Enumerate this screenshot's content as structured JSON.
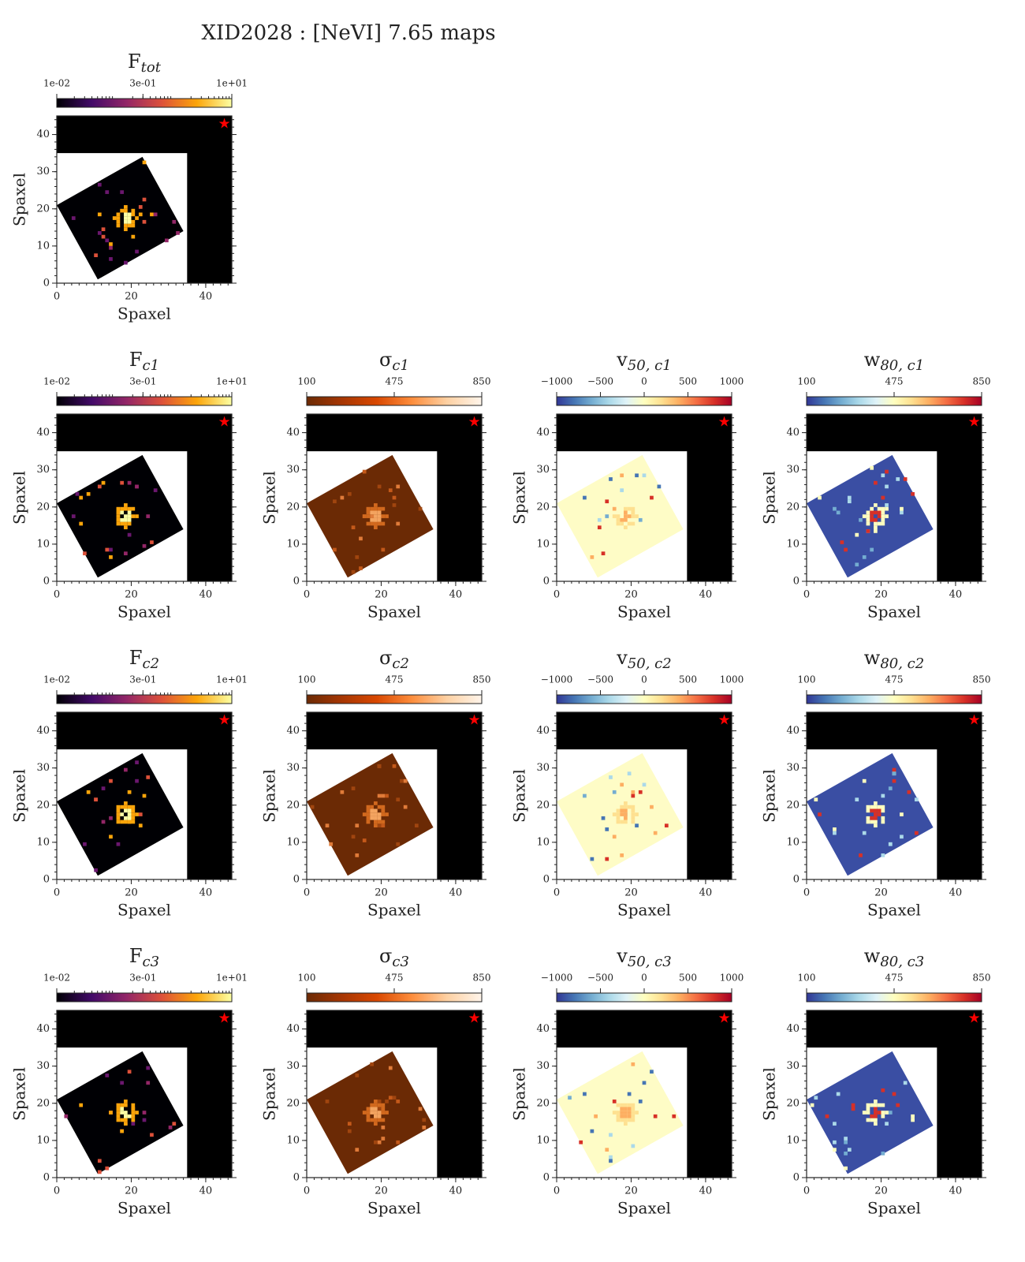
{
  "suptitle": "XID2028 : [NeVI] 7.65 maps",
  "chart_data": [
    {
      "type": "heatmap",
      "title": "F",
      "title_sub": "tot",
      "xlabel": "Spaxel",
      "ylabel": "Spaxel",
      "xlim": [
        0,
        47
      ],
      "ylim": [
        0,
        45
      ],
      "xticks": [
        0,
        20,
        40
      ],
      "yticks": [
        0,
        10,
        20,
        30,
        40
      ],
      "colorbar": {
        "cmap": "inferno",
        "scale": "log",
        "lim": [
          0.01,
          10
        ],
        "ticks": [
          {
            "value": 0.01,
            "label": "1e-02"
          },
          {
            "value": 0.3,
            "label": "3e-01"
          },
          {
            "value": 10,
            "label": "1e+01"
          }
        ]
      }
    },
    {
      "type": "heatmap",
      "title": "F",
      "title_sub": "c1",
      "xlabel": "Spaxel",
      "ylabel": "Spaxel",
      "xlim": [
        0,
        47
      ],
      "ylim": [
        0,
        45
      ],
      "xticks": [
        0,
        20,
        40
      ],
      "yticks": [
        0,
        10,
        20,
        30,
        40
      ],
      "colorbar": {
        "cmap": "inferno",
        "scale": "log",
        "lim": [
          0.01,
          10
        ],
        "ticks": [
          {
            "value": 0.01,
            "label": "1e-02"
          },
          {
            "value": 0.3,
            "label": "3e-01"
          },
          {
            "value": 10,
            "label": "1e+01"
          }
        ]
      }
    },
    {
      "type": "heatmap",
      "title": "σ",
      "title_sub": "c1",
      "xlabel": "Spaxel",
      "ylabel": "Spaxel",
      "xlim": [
        0,
        47
      ],
      "ylim": [
        0,
        45
      ],
      "xticks": [
        0,
        20,
        40
      ],
      "yticks": [
        0,
        10,
        20,
        30,
        40
      ],
      "colorbar": {
        "cmap": "oranges",
        "scale": "linear",
        "lim": [
          100,
          850
        ],
        "ticks": [
          100,
          475,
          850
        ]
      }
    },
    {
      "type": "heatmap",
      "title": "v",
      "title_sub": "50, c1",
      "xlabel": "Spaxel",
      "ylabel": "Spaxel",
      "xlim": [
        0,
        47
      ],
      "ylim": [
        0,
        45
      ],
      "xticks": [
        0,
        20,
        40
      ],
      "yticks": [
        0,
        10,
        20,
        30,
        40
      ],
      "colorbar": {
        "cmap": "rdylbu_r",
        "scale": "linear",
        "lim": [
          -1000,
          1000
        ],
        "ticks": [
          {
            "value": -1000,
            "label": "−1000"
          },
          {
            "value": -500,
            "label": "−500"
          },
          0,
          500,
          1000
        ]
      }
    },
    {
      "type": "heatmap",
      "title": "w",
      "title_sub": "80, c1",
      "xlabel": "Spaxel",
      "ylabel": "Spaxel",
      "xlim": [
        0,
        47
      ],
      "ylim": [
        0,
        45
      ],
      "xticks": [
        0,
        20,
        40
      ],
      "yticks": [
        0,
        10,
        20,
        30,
        40
      ],
      "colorbar": {
        "cmap": "rdylbu_r_w",
        "scale": "linear",
        "lim": [
          100,
          850
        ],
        "ticks": [
          100,
          475,
          850
        ]
      }
    },
    {
      "type": "heatmap",
      "title": "F",
      "title_sub": "c2",
      "xlabel": "Spaxel",
      "ylabel": "Spaxel",
      "xlim": [
        0,
        47
      ],
      "ylim": [
        0,
        45
      ],
      "xticks": [
        0,
        20,
        40
      ],
      "yticks": [
        0,
        10,
        20,
        30,
        40
      ],
      "colorbar": {
        "cmap": "inferno",
        "scale": "log",
        "lim": [
          0.01,
          10
        ],
        "ticks": [
          {
            "value": 0.01,
            "label": "1e-02"
          },
          {
            "value": 0.3,
            "label": "3e-01"
          },
          {
            "value": 10,
            "label": "1e+01"
          }
        ]
      }
    },
    {
      "type": "heatmap",
      "title": "σ",
      "title_sub": "c2",
      "xlabel": "Spaxel",
      "ylabel": "Spaxel",
      "xlim": [
        0,
        47
      ],
      "ylim": [
        0,
        45
      ],
      "xticks": [
        0,
        20,
        40
      ],
      "yticks": [
        0,
        10,
        20,
        30,
        40
      ],
      "colorbar": {
        "cmap": "oranges",
        "scale": "linear",
        "lim": [
          100,
          850
        ],
        "ticks": [
          100,
          475,
          850
        ]
      }
    },
    {
      "type": "heatmap",
      "title": "v",
      "title_sub": "50, c2",
      "xlabel": "Spaxel",
      "ylabel": "Spaxel",
      "xlim": [
        0,
        47
      ],
      "ylim": [
        0,
        45
      ],
      "xticks": [
        0,
        20,
        40
      ],
      "yticks": [
        0,
        10,
        20,
        30,
        40
      ],
      "colorbar": {
        "cmap": "rdylbu_r",
        "scale": "linear",
        "lim": [
          -1000,
          1000
        ],
        "ticks": [
          {
            "value": -1000,
            "label": "−1000"
          },
          {
            "value": -500,
            "label": "−500"
          },
          0,
          500,
          1000
        ]
      }
    },
    {
      "type": "heatmap",
      "title": "w",
      "title_sub": "80, c2",
      "xlabel": "Spaxel",
      "ylabel": "Spaxel",
      "xlim": [
        0,
        47
      ],
      "ylim": [
        0,
        45
      ],
      "xticks": [
        0,
        20,
        40
      ],
      "yticks": [
        0,
        10,
        20,
        30,
        40
      ],
      "colorbar": {
        "cmap": "rdylbu_r_w",
        "scale": "linear",
        "lim": [
          100,
          850
        ],
        "ticks": [
          100,
          475,
          850
        ]
      }
    },
    {
      "type": "heatmap",
      "title": "F",
      "title_sub": "c3",
      "xlabel": "Spaxel",
      "ylabel": "Spaxel",
      "xlim": [
        0,
        47
      ],
      "ylim": [
        0,
        45
      ],
      "xticks": [
        0,
        20,
        40
      ],
      "yticks": [
        0,
        10,
        20,
        30,
        40
      ],
      "colorbar": {
        "cmap": "inferno",
        "scale": "log",
        "lim": [
          0.01,
          10
        ],
        "ticks": [
          {
            "value": 0.01,
            "label": "1e-02"
          },
          {
            "value": 0.3,
            "label": "3e-01"
          },
          {
            "value": 10,
            "label": "1e+01"
          }
        ]
      }
    },
    {
      "type": "heatmap",
      "title": "σ",
      "title_sub": "c3",
      "xlabel": "Spaxel",
      "ylabel": "Spaxel",
      "xlim": [
        0,
        47
      ],
      "ylim": [
        0,
        45
      ],
      "xticks": [
        0,
        20,
        40
      ],
      "yticks": [
        0,
        10,
        20,
        30,
        40
      ],
      "colorbar": {
        "cmap": "oranges",
        "scale": "linear",
        "lim": [
          100,
          850
        ],
        "ticks": [
          100,
          475,
          850
        ]
      }
    },
    {
      "type": "heatmap",
      "title": "v",
      "title_sub": "50, c3",
      "xlabel": "Spaxel",
      "ylabel": "Spaxel",
      "xlim": [
        0,
        47
      ],
      "ylim": [
        0,
        45
      ],
      "xticks": [
        0,
        20,
        40
      ],
      "yticks": [
        0,
        10,
        20,
        30,
        40
      ],
      "colorbar": {
        "cmap": "rdylbu_r",
        "scale": "linear",
        "lim": [
          -1000,
          1000
        ],
        "ticks": [
          {
            "value": -1000,
            "label": "−1000"
          },
          {
            "value": -500,
            "label": "−500"
          },
          0,
          500,
          1000
        ]
      }
    },
    {
      "type": "heatmap",
      "title": "w",
      "title_sub": "80, c3",
      "xlabel": "Spaxel",
      "ylabel": "Spaxel",
      "xlim": [
        0,
        47
      ],
      "ylim": [
        0,
        45
      ],
      "xticks": [
        0,
        20,
        40
      ],
      "yticks": [
        0,
        10,
        20,
        30,
        40
      ],
      "colorbar": {
        "cmap": "rdylbu_r_w",
        "scale": "linear",
        "lim": [
          100,
          850
        ],
        "ticks": [
          100,
          475,
          850
        ]
      }
    }
  ]
}
